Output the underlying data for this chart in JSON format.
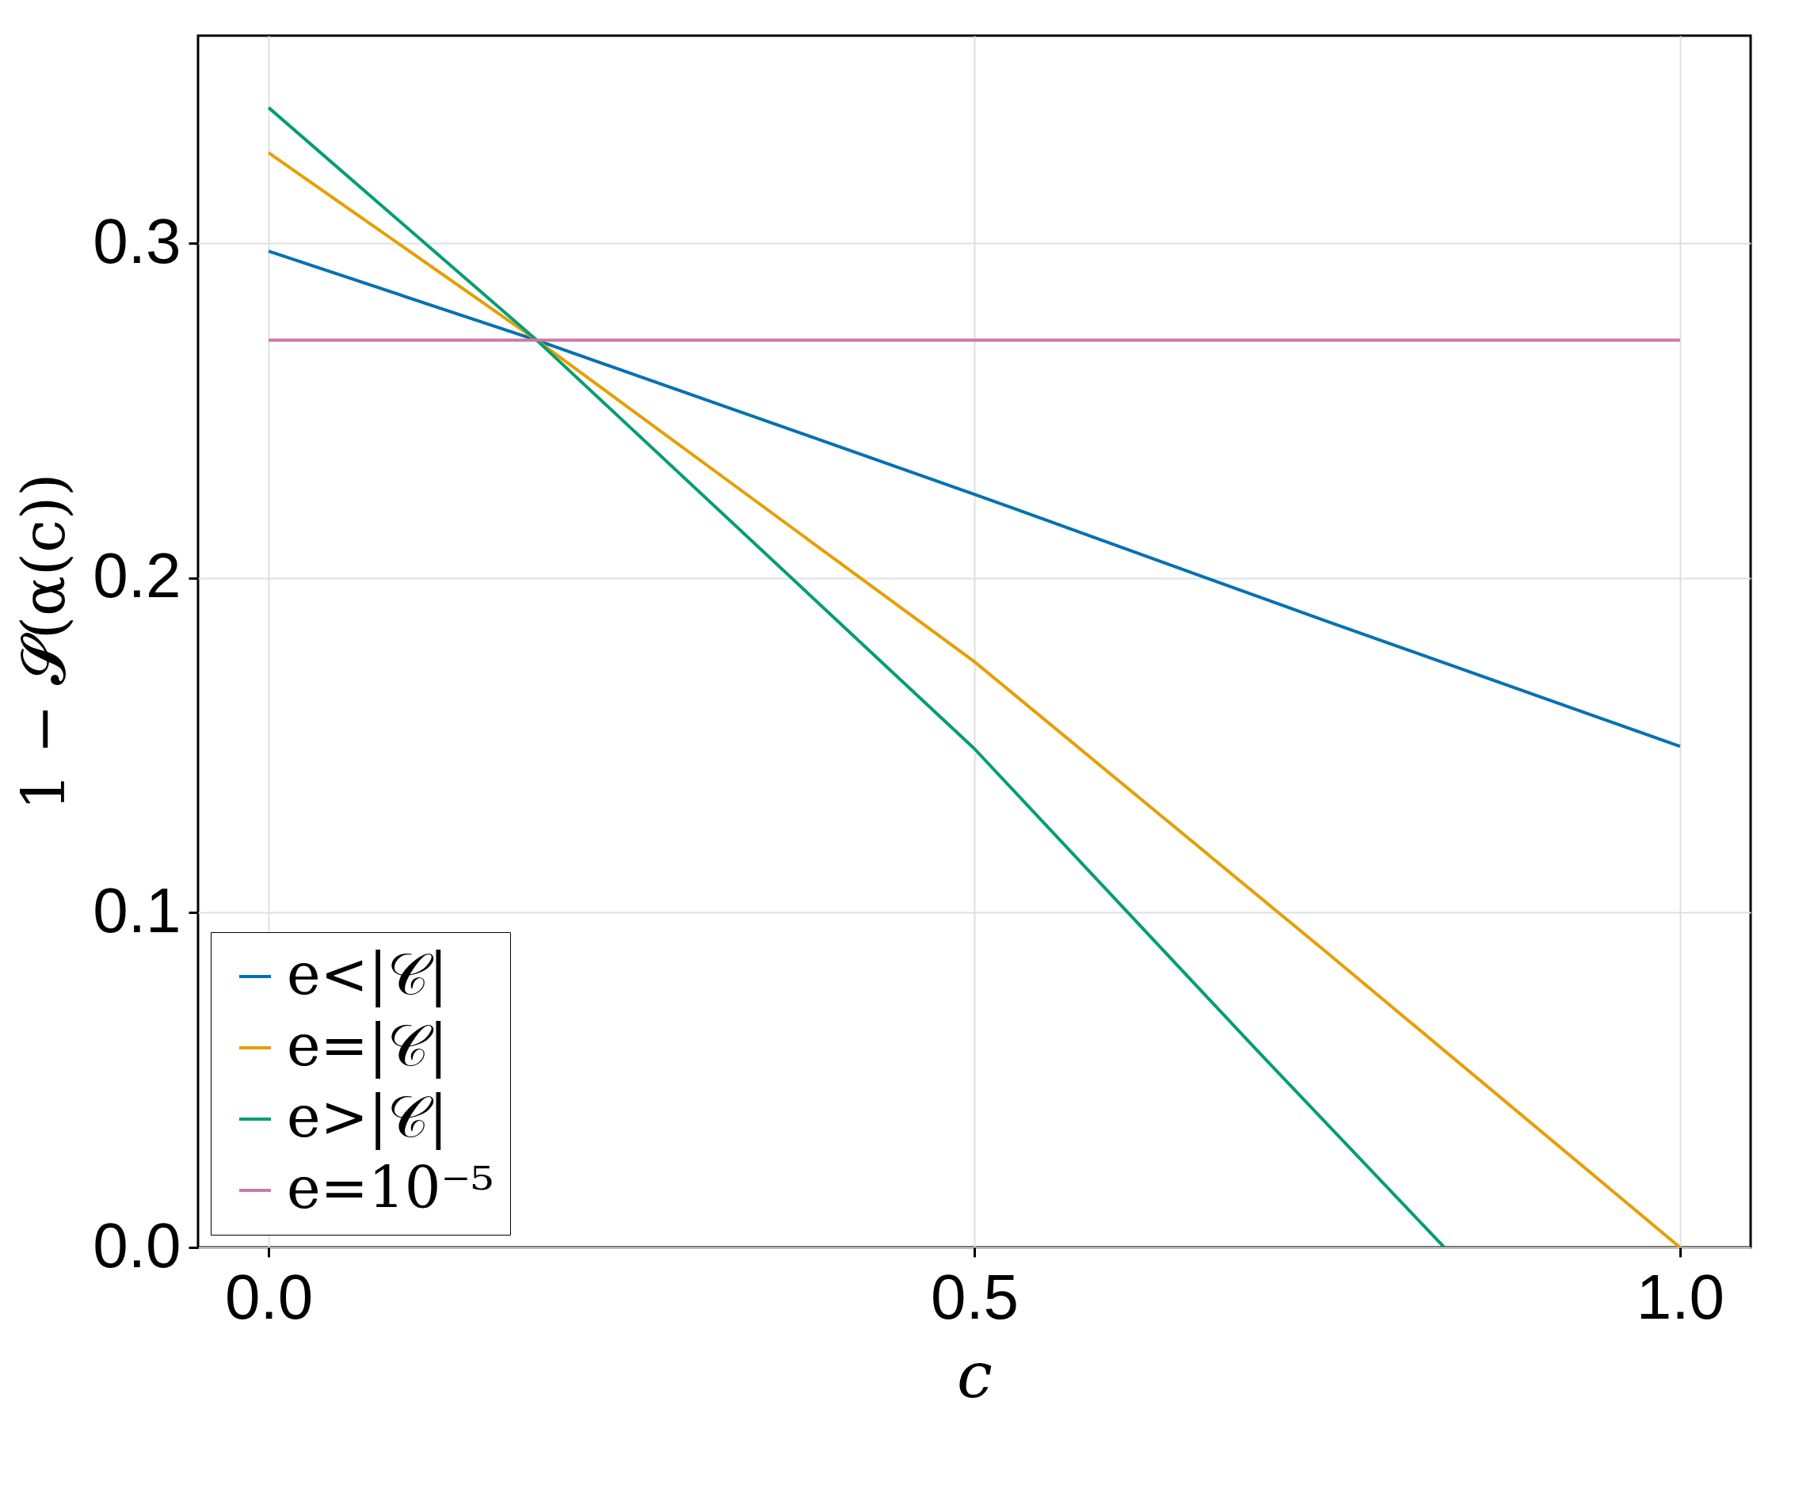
{
  "chart_data": {
    "type": "line",
    "xlabel": "c",
    "ylabel": "1 − 𝓢(α(c))",
    "xlim": [
      -0.05,
      1.05
    ],
    "ylim": [
      0,
      0.362
    ],
    "xticks": [
      {
        "value": 0,
        "label": "0.0"
      },
      0.5,
      {
        "value": 1,
        "label": "1.0"
      }
    ],
    "yticks": [
      {
        "value": 0,
        "label": "0.0"
      },
      0.1,
      0.2,
      0.3
    ],
    "grid": true,
    "legend": "bottom left",
    "line_style": "solid",
    "marker": "none",
    "series": [
      {
        "name": "e<|𝒞|",
        "color": "#0072b2",
        "x": [
          0,
          0.19,
          0.5,
          0.75,
          1
        ],
        "values": [
          0.2976,
          0.271,
          0.225,
          0.187,
          0.1497
        ]
      },
      {
        "name": "e=|𝒞|",
        "color": "#e69f00",
        "x": [
          0,
          0.19,
          0.5,
          0.75,
          1
        ],
        "values": [
          0.327,
          0.271,
          0.175,
          0.088,
          0
        ]
      },
      {
        "name": "e>|𝒞|",
        "color": "#009e73",
        "x": [
          0,
          0.19,
          0.5,
          0.7,
          0.833
        ],
        "values": [
          0.3405,
          0.271,
          0.149,
          0.059,
          0
        ]
      },
      {
        "name": "e=10⁻⁵",
        "color": "#cc79a7",
        "x": [
          0,
          0.19,
          0.5,
          0.75,
          1
        ],
        "values": [
          0.271,
          0.271,
          0.271,
          0.271,
          0.271
        ]
      }
    ]
  }
}
